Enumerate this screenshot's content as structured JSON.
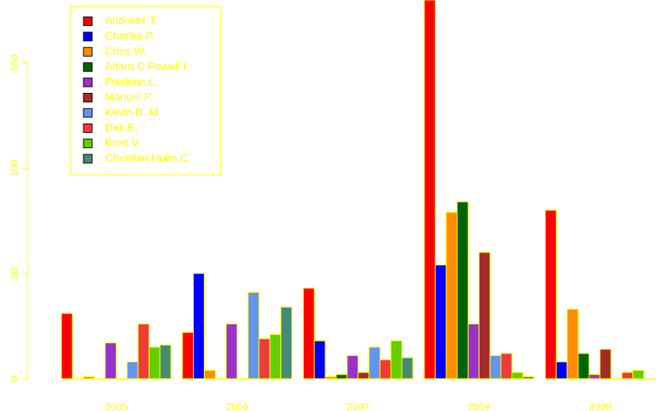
{
  "chart_data": {
    "type": "bar",
    "title": "",
    "xlabel": "",
    "ylabel": "",
    "categories": [
      "2005",
      "2006",
      "2007",
      "2008",
      "2009"
    ],
    "y_ticks": [
      "0",
      "50",
      "100",
      "150"
    ],
    "ylim": [
      0,
      175
    ],
    "legend_position": "top-left",
    "text_color": "#ffff00",
    "bar_border_color": "#ffff00",
    "series": [
      {
        "name": "Andreas.T.",
        "color": "#ff0000",
        "values": [
          31,
          22,
          43,
          190,
          80
        ]
      },
      {
        "name": "Charles.P.",
        "color": "#0000ff",
        "values": [
          0,
          50,
          18,
          54,
          8
        ]
      },
      {
        "name": "Chris.W.",
        "color": "#ff8c00",
        "values": [
          1,
          4,
          1,
          79,
          33
        ]
      },
      {
        "name": "Adam.C.Powell.I.",
        "color": "#006400",
        "values": [
          0,
          0,
          2,
          84,
          12
        ]
      },
      {
        "name": "Frederic.L.",
        "color": "#9932cc",
        "values": [
          17,
          26,
          11,
          26,
          2
        ]
      },
      {
        "name": "Manuel.P.",
        "color": "#a52a2a",
        "values": [
          0,
          0,
          3,
          60,
          14
        ]
      },
      {
        "name": "Kevin.B..M.",
        "color": "#6495ed",
        "values": [
          8,
          41,
          15,
          11,
          0
        ]
      },
      {
        "name": "Dirk.E.",
        "color": "#ee3b3b",
        "values": [
          26,
          19,
          9,
          12,
          3
        ]
      },
      {
        "name": "Brett.V.",
        "color": "#66cd00",
        "values": [
          15,
          21,
          18,
          3,
          4
        ]
      },
      {
        "name": "Christian.Holm.C.",
        "color": "#458b74",
        "values": [
          16,
          34,
          10,
          1,
          0
        ]
      }
    ]
  }
}
